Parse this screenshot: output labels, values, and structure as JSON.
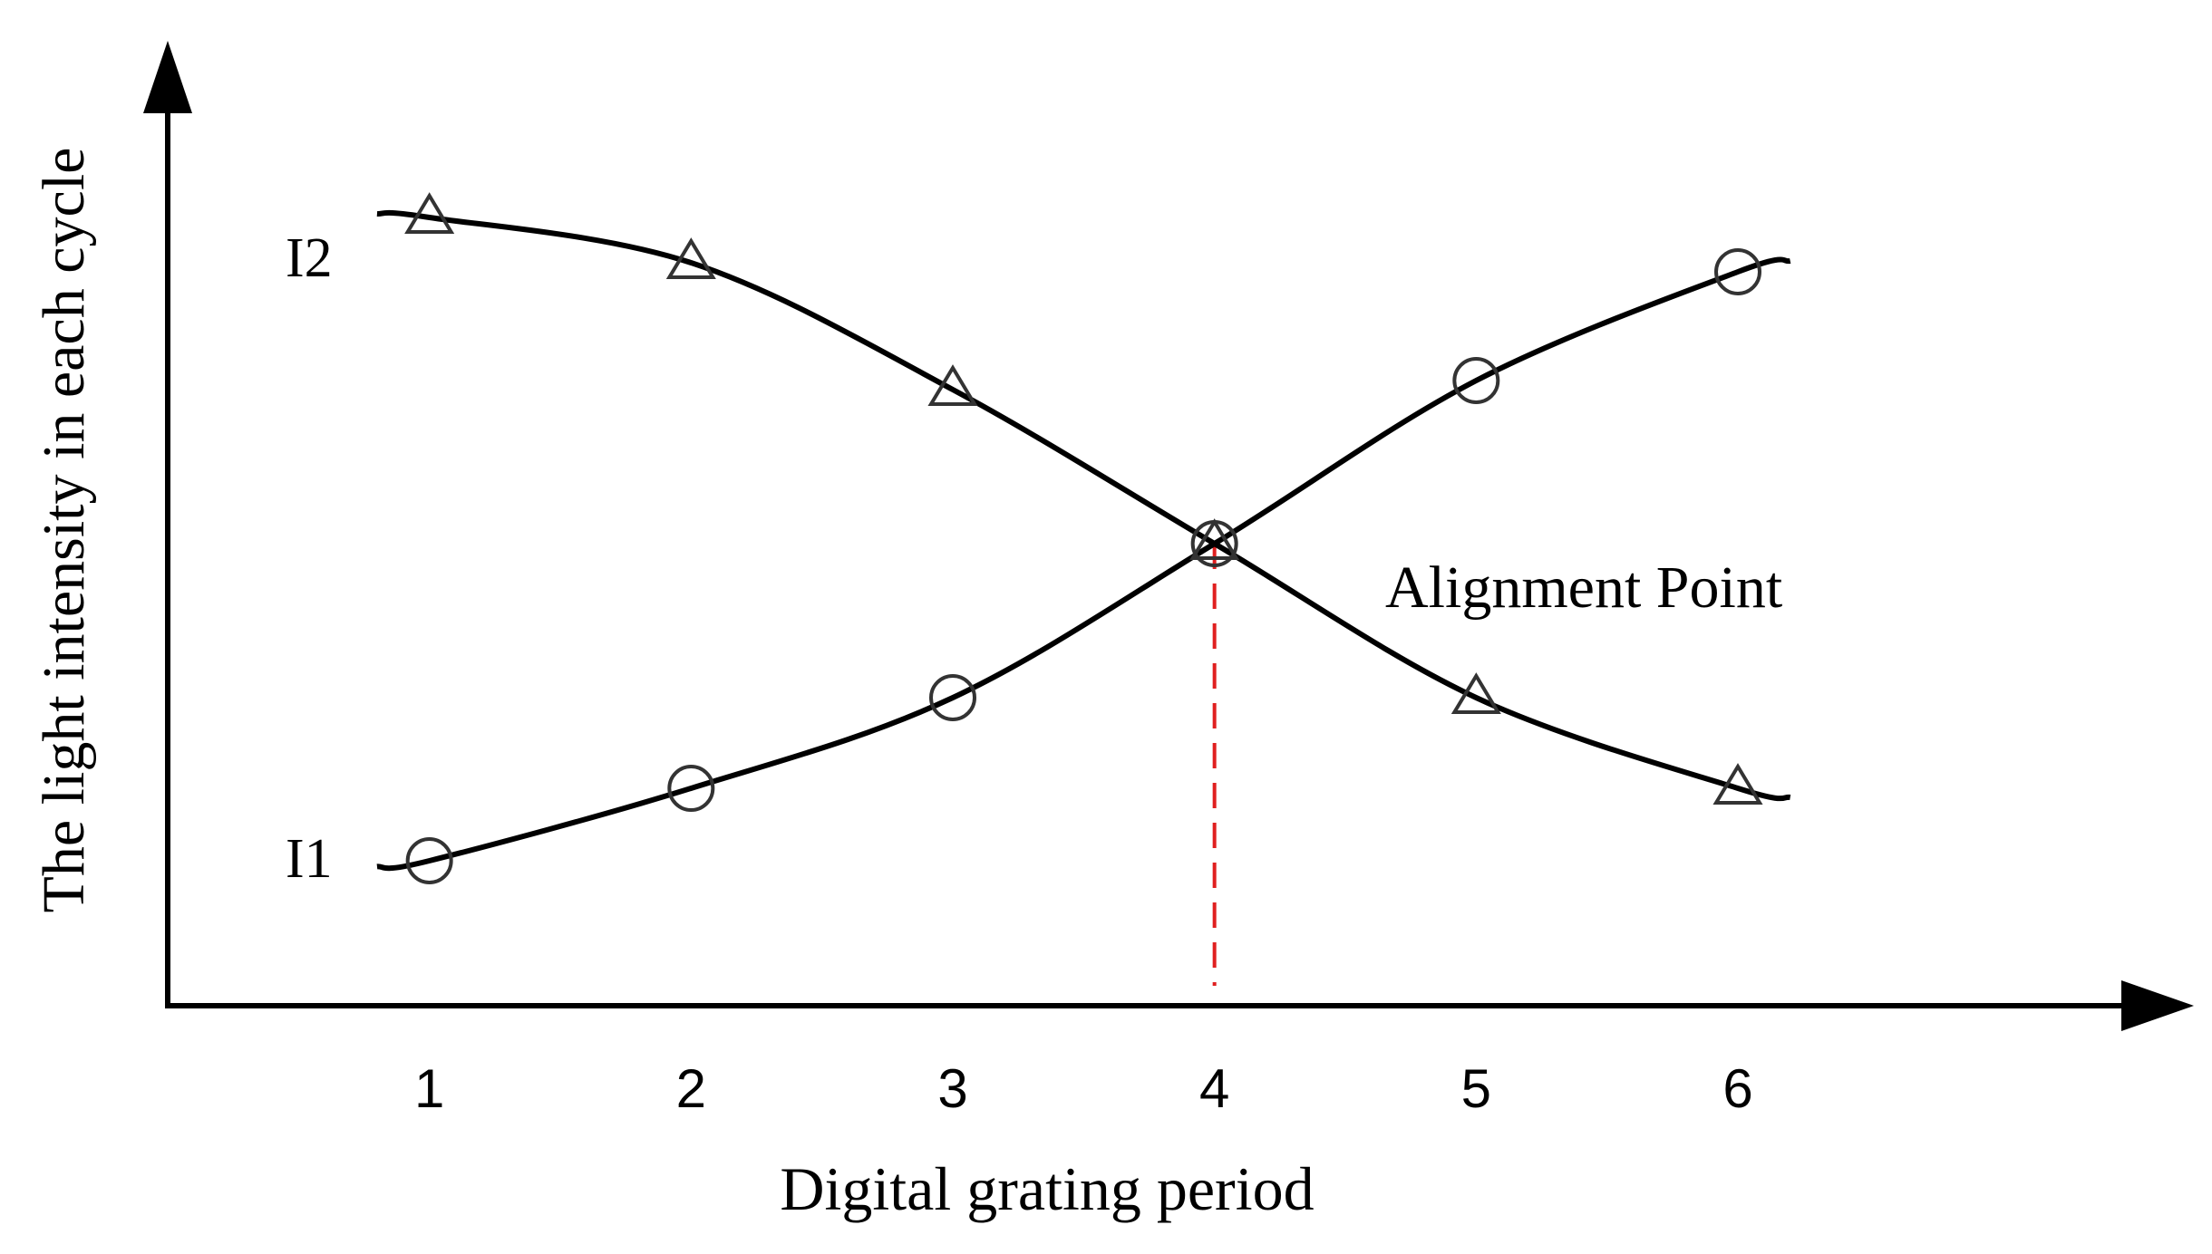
{
  "chart_data": {
    "type": "line",
    "title": "",
    "xlabel": "Digital grating period",
    "ylabel": "The light intensity in each cycle",
    "x": [
      1,
      2,
      3,
      4,
      5,
      6
    ],
    "xlim": [
      0,
      7.5
    ],
    "ylim": [
      0,
      1
    ],
    "grid": false,
    "series": [
      {
        "name": "I1",
        "marker": "circle",
        "values": [
          0.16,
          0.24,
          0.34,
          0.51,
          0.69,
          0.81
        ],
        "color": "#000000"
      },
      {
        "name": "I2",
        "marker": "triangle",
        "values": [
          0.87,
          0.82,
          0.68,
          0.51,
          0.34,
          0.24
        ],
        "color": "#000000"
      }
    ],
    "annotations": [
      {
        "text": "Alignment Point",
        "x": 4,
        "y": 0.51
      }
    ],
    "guide_line_color": "#e02020"
  }
}
